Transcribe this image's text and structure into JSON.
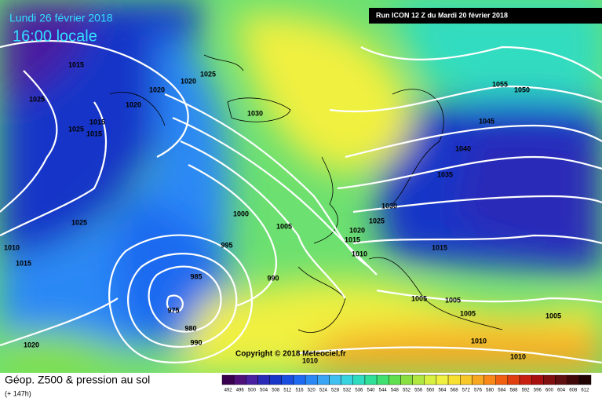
{
  "header": {
    "date": "Lundi 26 février 2018",
    "time": "16:00 locale",
    "run": "Run ICON 12 Z du Mardi 20 février 2018"
  },
  "copyright": "Copyright © 2018 Meteociel.fr",
  "footer": {
    "title": "Géop. Z500 & pression au sol",
    "lead": "(+ 147h)"
  },
  "isobar_labels": [
    "1015",
    "1025",
    "1020",
    "1020",
    "1020",
    "1025",
    "1015",
    "1025",
    "1015",
    "1030",
    "1055",
    "1050",
    "1045",
    "1040",
    "1035",
    "1030",
    "1025",
    "1020",
    "1015",
    "1010",
    "1000",
    "1005",
    "995",
    "990",
    "985",
    "975",
    "980",
    "990",
    "1025",
    "1010",
    "1015",
    "1020",
    "1015",
    "1005",
    "1005",
    "1005",
    "1005",
    "1010",
    "1010",
    "1010"
  ],
  "colorbar": {
    "labels": [
      492,
      496,
      500,
      504,
      508,
      512,
      516,
      520,
      524,
      528,
      532,
      536,
      540,
      544,
      548,
      552,
      556,
      560,
      564,
      568,
      572,
      576,
      580,
      584,
      588,
      592,
      596,
      600,
      604,
      608,
      612
    ],
    "colors": [
      "#3a0050",
      "#50107a",
      "#4a1fa0",
      "#2a2ab8",
      "#1836c8",
      "#1a4ee0",
      "#1e6af0",
      "#2a88f5",
      "#3aa4f5",
      "#40c0f0",
      "#38d4e0",
      "#30dcc0",
      "#30e098",
      "#40e070",
      "#60e050",
      "#88e040",
      "#b0e840",
      "#d8f040",
      "#f0f040",
      "#f8e030",
      "#f8c828",
      "#f8a820",
      "#f88818",
      "#f06010",
      "#e04010",
      "#c82010",
      "#a81010",
      "#801010",
      "#601010",
      "#400808",
      "#200404"
    ]
  }
}
